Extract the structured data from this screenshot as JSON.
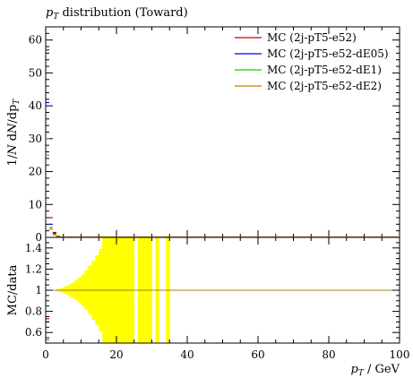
{
  "chart_data": [
    {
      "type": "line",
      "title": "p_T distribution (Toward)",
      "title_main": "p",
      "title_sub": "T",
      "title_rest": " distribution (Toward)",
      "ylabel": "1/N dN/dp_T",
      "ylabel_parts": {
        "a": "1/",
        "b": "N",
        "c": " d",
        "d": "N",
        "e": "/dp",
        "f": "T"
      },
      "xlim": [
        0,
        100
      ],
      "ylim": [
        0,
        64
      ],
      "y_ticks": [
        0,
        10,
        20,
        30,
        40,
        50,
        60
      ],
      "y_tick_labels": [
        "0",
        "10",
        "20",
        "30",
        "40",
        "50",
        "60"
      ],
      "grid": false,
      "legend_position": "top-right",
      "series": [
        {
          "name": "MC (2j-pT5-e52)",
          "color": "#cc0000",
          "x": [
            0.5,
            1.5,
            2.5,
            3.5
          ],
          "y": [
            57,
            6,
            1.5,
            0.4
          ]
        },
        {
          "name": "MC (2j-pT5-e52-dE05)",
          "color": "#0000ee",
          "x": [
            0.5,
            1.5,
            2.5,
            3.5
          ],
          "y": [
            41,
            4,
            1.2,
            0.3
          ]
        },
        {
          "name": "MC (2j-pT5-e52-dE1)",
          "color": "#22cc00",
          "x": [
            0.5,
            1.5,
            2.5,
            3.5
          ],
          "y": [
            30,
            3,
            1,
            0.3
          ]
        },
        {
          "name": "MC (2j-pT5-e52-dE2)",
          "color": "#cc7700",
          "x": [
            0.5,
            1.5,
            2.5,
            3.5
          ],
          "y": [
            25,
            2.5,
            0.8,
            0.2
          ]
        }
      ]
    },
    {
      "type": "line",
      "ylabel": "MC/data",
      "xlabel": "p_T / GeV",
      "xlabel_main": "p",
      "xlabel_sub": "T",
      "xlabel_rest": " / GeV",
      "xlim": [
        0,
        100
      ],
      "ylim": [
        0.5,
        1.5
      ],
      "x_ticks": [
        0,
        20,
        40,
        60,
        80,
        100
      ],
      "x_tick_labels": [
        "0",
        "20",
        "40",
        "60",
        "80",
        "100"
      ],
      "y_ticks": [
        0.6,
        0.8,
        1.0,
        1.2,
        1.4
      ],
      "y_tick_labels": [
        "0.6",
        "0.8",
        "1",
        "1.2",
        "1.4"
      ],
      "reference_line": 1.0,
      "uncertainty_band": {
        "color": "#ffff00",
        "x_edges": [
          2,
          3,
          4,
          5,
          6,
          7,
          8,
          9,
          10,
          11,
          12,
          13,
          14,
          15,
          16,
          17,
          18,
          19,
          20,
          21,
          22,
          23,
          24,
          25,
          26,
          27,
          28,
          29,
          30,
          31,
          32,
          33,
          34,
          35
        ],
        "half_width": [
          0.005,
          0.01,
          0.02,
          0.035,
          0.05,
          0.07,
          0.09,
          0.12,
          0.15,
          0.19,
          0.23,
          0.28,
          0.33,
          0.39,
          1.0,
          1.0,
          1.0,
          1.0,
          1.0,
          1.0,
          1.0,
          1.0,
          1.0,
          0,
          1.0,
          1.0,
          1.0,
          1.0,
          0,
          1.0,
          0,
          0,
          1.0
        ]
      },
      "series": [
        {
          "name": "MC (2j-pT5-e52)",
          "color": "#cc0000",
          "x": [
            0.5
          ],
          "y": [
            0.73
          ]
        },
        {
          "name": "MC (2j-pT5-e52-dE05)",
          "color": "#0000ee",
          "x": [
            0.5
          ],
          "y": [
            0.7
          ]
        },
        {
          "name": "MC (2j-pT5-e52-dE1)",
          "color": "#22cc00",
          "x": [
            0.5
          ],
          "y": [
            0.53
          ]
        },
        {
          "name": "MC (2j-pT5-e52-dE2)",
          "color": "#cc7700",
          "x": [
            0.5
          ],
          "y": [
            0.5
          ]
        }
      ]
    }
  ]
}
